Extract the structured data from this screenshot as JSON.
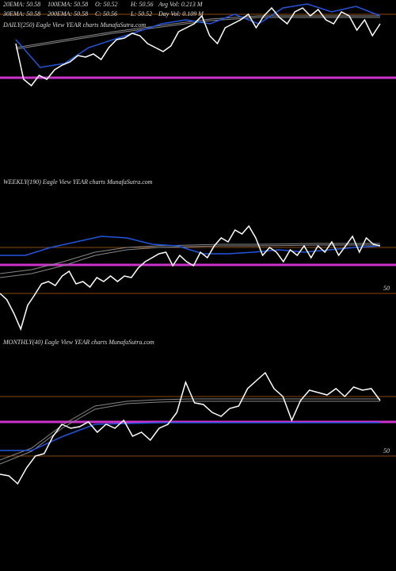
{
  "header": {
    "row1": [
      "20EMA: 50.58",
      "100EMA: 50.58",
      "O: 50.52",
      "H: 50.56",
      "Avg Vol: 0.213 M"
    ],
    "row2": [
      "30EMA: 50.58",
      "200EMA: 50.58",
      "C: 50.56",
      "L: 50.52",
      "Day Vol: 0.109 M"
    ]
  },
  "chart_data": [
    {
      "type": "line",
      "title": "DAILY(250) Eagle  View  YEAR charts MunafaSutra.com",
      "ylim": [
        50.3,
        50.9
      ],
      "yticks": [],
      "hlines": [
        {
          "value": 50.81,
          "color": "#8a4a14"
        },
        {
          "value": 50.41,
          "color": "#cc33cc"
        }
      ],
      "series": [
        {
          "color": "#888888",
          "values": [
            50.6,
            50.625,
            50.65,
            50.675,
            50.7,
            50.72,
            50.74,
            50.76,
            50.78,
            50.79,
            50.8,
            50.8,
            50.8,
            50.8,
            50.8,
            50.8
          ]
        },
        {
          "color": "#888888",
          "values": [
            50.59,
            50.615,
            50.64,
            50.665,
            50.69,
            50.71,
            50.73,
            50.75,
            50.77,
            50.78,
            50.79,
            50.79,
            50.79,
            50.79,
            50.79,
            50.79
          ]
        },
        {
          "color": "#2255dd",
          "values": [
            50.65,
            50.475,
            50.5,
            50.6,
            50.65,
            50.7,
            50.75,
            50.775,
            50.75,
            50.81,
            50.75,
            50.85,
            50.875,
            50.825,
            50.86,
            50.8
          ]
        },
        {
          "color": "#ffffff",
          "values": [
            50.625,
            50.4,
            50.36,
            50.425,
            50.4,
            50.46,
            50.49,
            50.51,
            50.55,
            50.54,
            50.56,
            50.525,
            50.6,
            50.65,
            50.66,
            50.69,
            50.675,
            50.625,
            50.6,
            50.575,
            50.61,
            50.7,
            50.725,
            50.75,
            50.8,
            50.675,
            50.625,
            50.725,
            50.75,
            50.775,
            50.81,
            50.725,
            50.8,
            50.85,
            50.79,
            50.75,
            50.825,
            50.85,
            50.8,
            50.84,
            50.775,
            50.75,
            50.825,
            50.8,
            50.71,
            50.775,
            50.675,
            50.75
          ]
        }
      ]
    },
    {
      "type": "line",
      "title": "WEEKLY(190) Eagle  View  YEAR charts MunafaSutra.com",
      "ylim": [
        49.7,
        50.75
      ],
      "yticks": [
        50
      ],
      "tick_color": "#8a4a14",
      "hlines": [
        {
          "value": 50.29,
          "color": "#8a4a14"
        },
        {
          "value": 50.18,
          "color": "#cc33cc"
        }
      ],
      "series": [
        {
          "color": "#888888",
          "values": [
            50.125,
            50.15,
            50.2,
            50.26,
            50.29,
            50.3,
            50.305,
            50.31,
            50.31,
            50.312,
            50.315,
            50.315,
            50.315
          ]
        },
        {
          "color": "#888888",
          "values": [
            50.1,
            50.125,
            50.175,
            50.24,
            50.275,
            50.29,
            50.295,
            50.3,
            50.3,
            50.302,
            50.305,
            50.305,
            50.305
          ]
        },
        {
          "color": "#2255dd",
          "values": [
            50.24,
            50.24,
            50.29,
            50.325,
            50.36,
            50.35,
            50.31,
            50.3,
            50.25,
            50.25,
            50.26,
            50.275,
            50.26,
            50.275,
            50.29,
            50.3
          ]
        },
        {
          "color": "#ffffff",
          "values": [
            50.0,
            49.96,
            49.875,
            49.775,
            49.925,
            49.99,
            50.06,
            50.075,
            50.05,
            50.11,
            50.14,
            50.06,
            50.075,
            50.04,
            50.1,
            50.075,
            50.11,
            50.075,
            50.11,
            50.1,
            50.16,
            50.2,
            50.225,
            50.25,
            50.26,
            50.175,
            50.24,
            50.2,
            50.175,
            50.26,
            50.225,
            50.3,
            50.35,
            50.325,
            50.4,
            50.375,
            50.425,
            50.35,
            50.24,
            50.29,
            50.26,
            50.2,
            50.275,
            50.24,
            50.3,
            50.225,
            50.3,
            50.26,
            50.325,
            50.24,
            50.3,
            50.36,
            50.26,
            50.35,
            50.31,
            50.3
          ]
        }
      ]
    },
    {
      "type": "line",
      "title": "MONTHLY(40) Eagle  View  YEAR charts MunafaSutra.com",
      "ylim": [
        49.7,
        50.75
      ],
      "yticks": [
        50
      ],
      "tick_color": "#8a4a14",
      "hlines": [
        {
          "value": 50.375,
          "color": "#8a4a14"
        },
        {
          "value": 50.215,
          "color": "#cc33cc"
        }
      ],
      "series": [
        {
          "color": "#888888",
          "values": [
            49.975,
            50.05,
            50.2,
            50.315,
            50.345,
            50.355,
            50.36,
            50.36,
            50.36,
            50.36,
            50.36,
            50.36,
            50.36
          ]
        },
        {
          "color": "#888888",
          "values": [
            49.95,
            50.03,
            50.18,
            50.295,
            50.33,
            50.34,
            50.345,
            50.345,
            50.345,
            50.345,
            50.345,
            50.345,
            50.345
          ]
        },
        {
          "color": "#2255dd",
          "values": [
            50.035,
            50.035,
            50.125,
            50.2,
            50.205,
            50.21,
            50.21,
            50.21,
            50.21,
            50.21,
            50.21,
            50.21,
            50.21
          ]
        },
        {
          "color": "#ffffff",
          "values": [
            49.885,
            49.875,
            49.825,
            49.925,
            50.0,
            50.015,
            50.125,
            50.2,
            50.175,
            50.185,
            50.215,
            50.15,
            50.2,
            50.175,
            50.225,
            50.125,
            50.15,
            50.1,
            50.175,
            50.2,
            50.275,
            50.465,
            50.335,
            50.325,
            50.275,
            50.25,
            50.3,
            50.315,
            50.425,
            50.475,
            50.525,
            50.425,
            50.375,
            50.225,
            50.35,
            50.415,
            50.4,
            50.385,
            50.425,
            50.375,
            50.435,
            50.415,
            50.425,
            50.35
          ]
        }
      ]
    }
  ]
}
